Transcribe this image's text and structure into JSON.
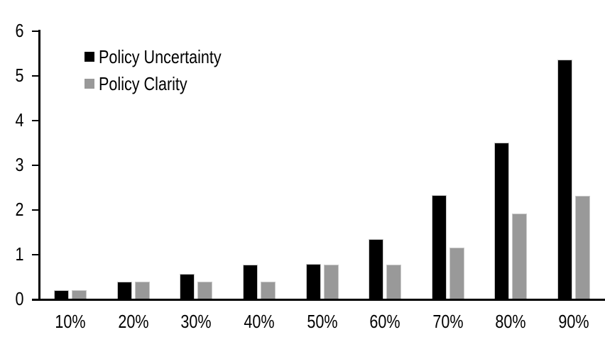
{
  "chart_data": {
    "type": "bar",
    "title": "",
    "categories": [
      "10%",
      "20%",
      "30%",
      "40%",
      "50%",
      "60%",
      "70%",
      "80%",
      "90%"
    ],
    "series": [
      {
        "name": "Policy Uncertainty",
        "color": "#000000",
        "values": [
          0.19,
          0.38,
          0.56,
          0.76,
          0.78,
          1.33,
          2.32,
          3.5,
          5.35
        ]
      },
      {
        "name": "Policy Clarity",
        "color": "#999999",
        "values": [
          0.19,
          0.38,
          0.38,
          0.38,
          0.77,
          0.77,
          1.14,
          1.9,
          2.3
        ]
      }
    ],
    "xlabel": "",
    "ylabel": "",
    "ylim": [
      0,
      6
    ],
    "yticks": [
      0,
      1,
      2,
      3,
      4,
      5,
      6
    ],
    "grid": false,
    "legend_position": "top-left",
    "axis_color": "#000000",
    "background_color": "#ffffff"
  }
}
